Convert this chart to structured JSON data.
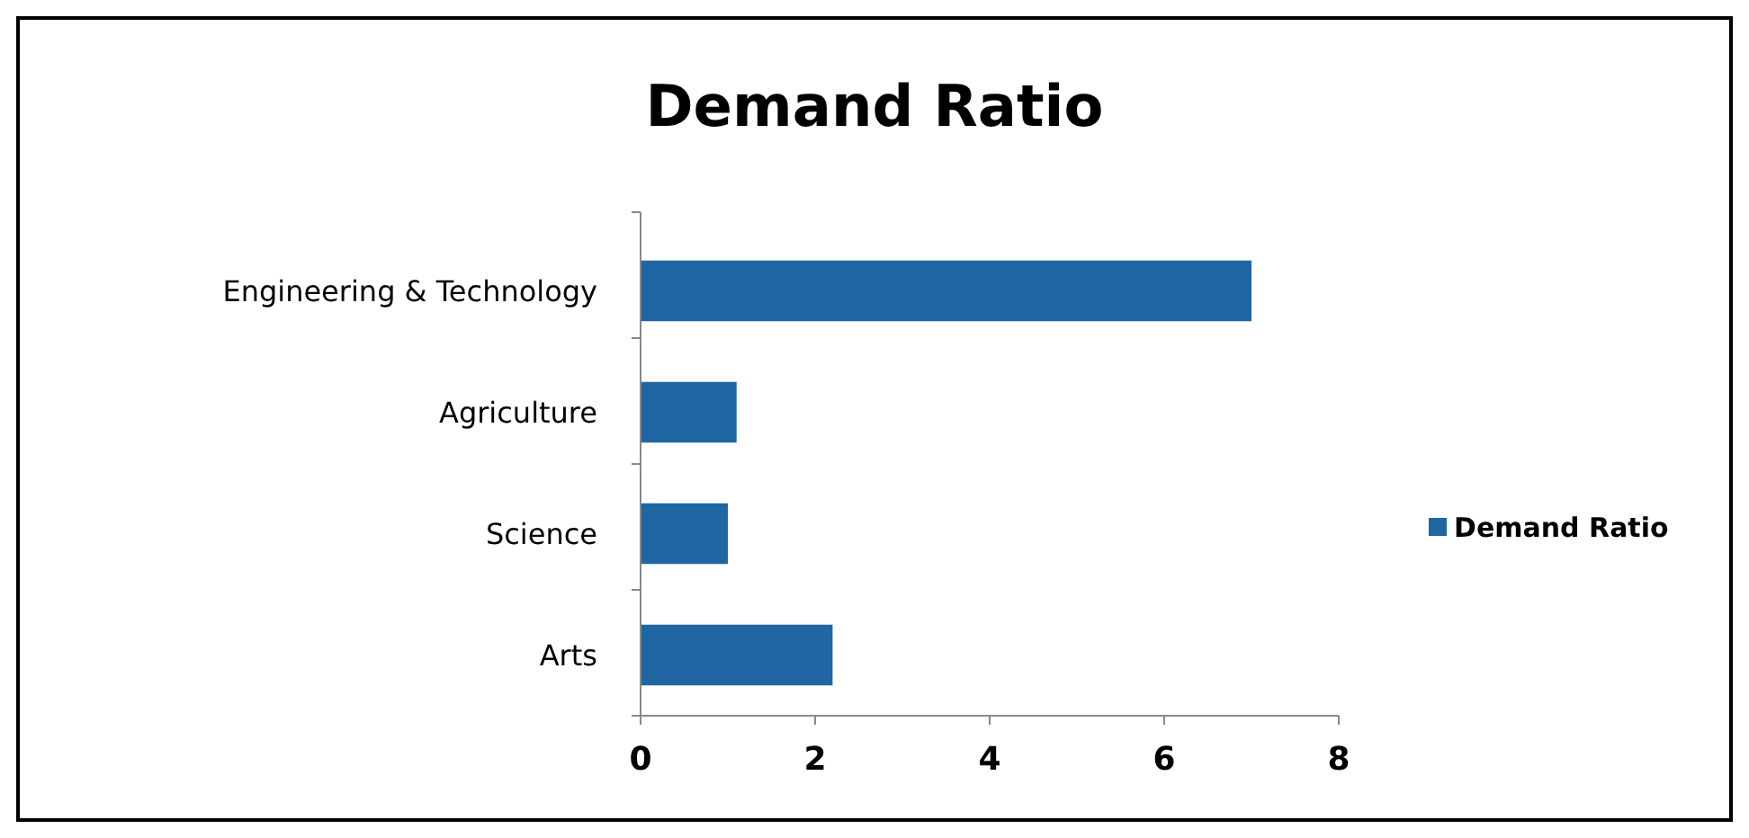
{
  "chart_data": {
    "type": "bar",
    "orientation": "horizontal",
    "title": "Demand Ratio",
    "categories": [
      "Engineering & Technology",
      "Agriculture",
      "Science",
      "Arts"
    ],
    "series": [
      {
        "name": "Demand Ratio",
        "color": "#1f66a3",
        "values": [
          7,
          1.1,
          1,
          2.2
        ]
      }
    ],
    "xlim": [
      0,
      8
    ],
    "xticks": [
      0,
      2,
      4,
      6,
      8
    ],
    "grid": false,
    "legend": "right"
  }
}
